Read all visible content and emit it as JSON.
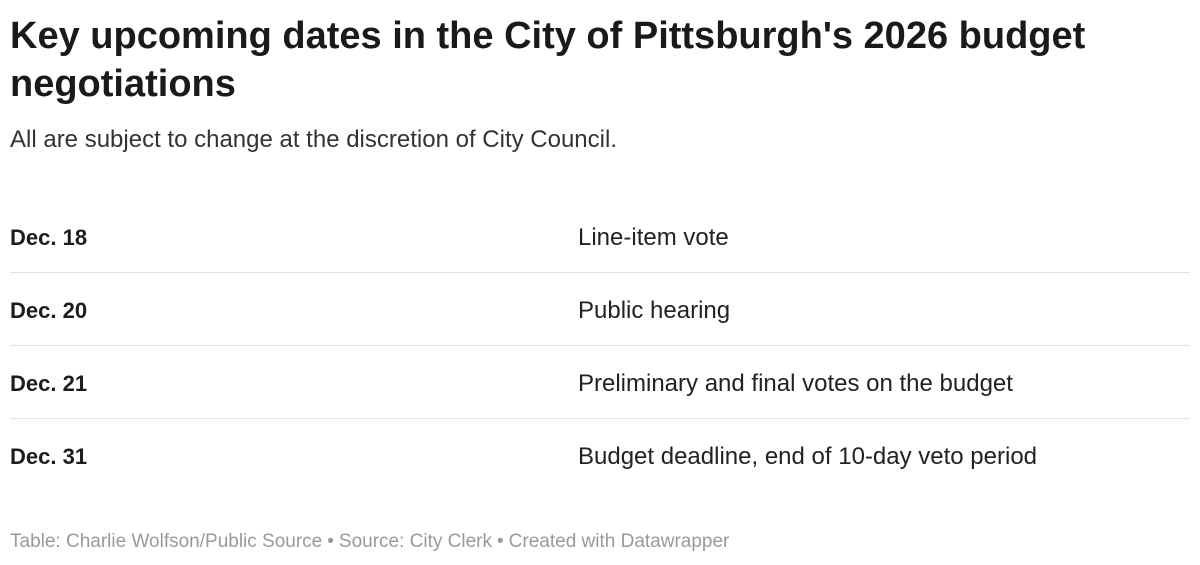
{
  "chart_data": {
    "type": "table",
    "title": "Key upcoming dates in the City of Pittsburgh's 2026 budget negotiations",
    "subtitle": "All are subject to change at the discretion of City Council.",
    "rows": [
      {
        "date": "Dec. 18",
        "event": "Line-item vote"
      },
      {
        "date": "Dec. 20",
        "event": "Public hearing"
      },
      {
        "date": "Dec. 21",
        "event": "Preliminary and final votes on the budget"
      },
      {
        "date": "Dec. 31",
        "event": "Budget deadline, end of 10-day veto period"
      }
    ],
    "footer": {
      "credit": "Table: Charlie Wolfson/Public Source",
      "separator": "•",
      "source": "Source: City Clerk",
      "tool": "Created with Datawrapper"
    }
  }
}
